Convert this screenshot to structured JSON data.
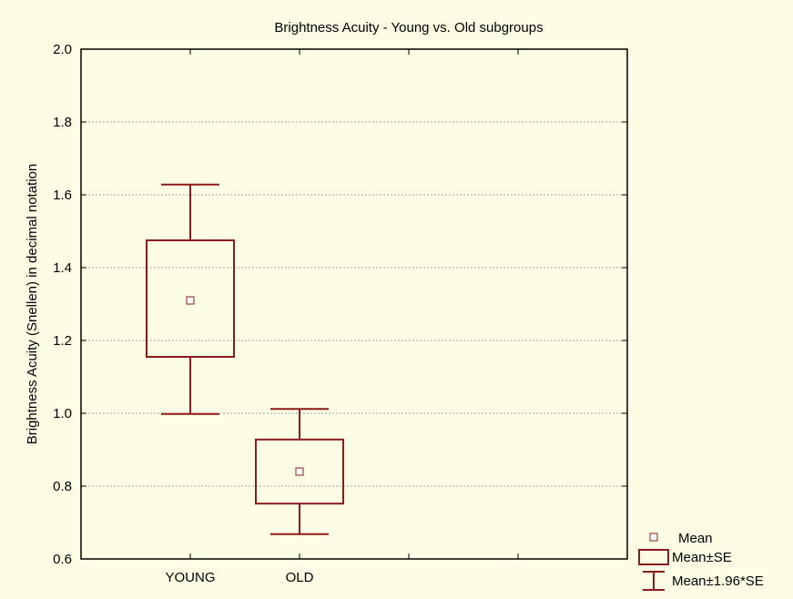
{
  "chart_data": {
    "type": "box",
    "title": "Brightness Acuity  - Young vs. Old subgroups",
    "xlabel": "",
    "ylabel": "Brightness Acuity (Snellen) in decimal notation",
    "ylim": [
      0.6,
      2.0
    ],
    "yticks": [
      "0.6",
      "0.8",
      "1.0",
      "1.2",
      "1.4",
      "1.6",
      "1.8",
      "2.0"
    ],
    "categories": [
      "YOUNG",
      "OLD"
    ],
    "grid": true,
    "legend_position": "bottom-right",
    "color": "#8b1a1a",
    "groups": [
      {
        "category": "YOUNG",
        "mean": 1.31,
        "se_low": 1.155,
        "se_high": 1.475,
        "ci_low": 0.998,
        "ci_high": 1.628
      },
      {
        "category": "OLD",
        "mean": 0.84,
        "se_low": 0.752,
        "se_high": 0.928,
        "ci_low": 0.668,
        "ci_high": 1.012
      }
    ],
    "legend": [
      "Mean",
      "Mean±SE",
      "Mean±1.96*SE"
    ]
  }
}
